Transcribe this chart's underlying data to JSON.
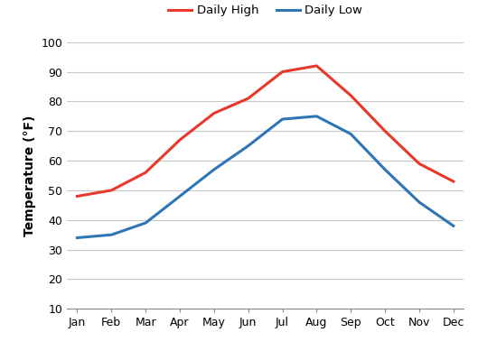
{
  "months": [
    "Jan",
    "Feb",
    "Mar",
    "Apr",
    "May",
    "Jun",
    "Jul",
    "Aug",
    "Sep",
    "Oct",
    "Nov",
    "Dec"
  ],
  "daily_high": [
    48,
    50,
    56,
    67,
    76,
    81,
    90,
    92,
    82,
    70,
    59,
    53
  ],
  "daily_low": [
    34,
    35,
    39,
    48,
    57,
    65,
    74,
    75,
    69,
    57,
    46,
    38
  ],
  "high_color": "#e8382a",
  "low_color": "#2e75b6",
  "ylabel": "Temperature (°F)",
  "legend_high": "Daily High",
  "legend_low": "Daily Low",
  "ylim_min": 10,
  "ylim_max": 100,
  "yticks": [
    10,
    20,
    30,
    40,
    50,
    60,
    70,
    80,
    90,
    100
  ],
  "line_width": 2.2,
  "grid_color": "#c8c8c8",
  "background_color": "#ffffff"
}
